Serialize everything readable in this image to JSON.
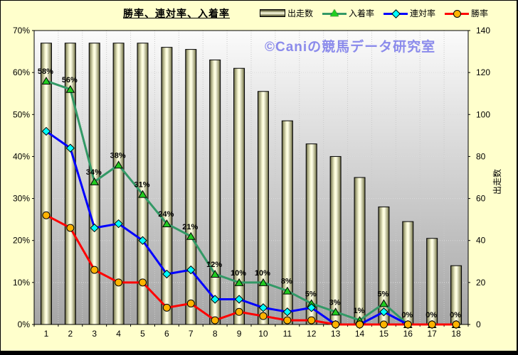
{
  "chart_data": {
    "type": "bar",
    "subtype": "bar-line-combo",
    "title": "勝率、連対率、入着率",
    "watermark": "©Caniの競馬データ研究室",
    "categories": [
      "1",
      "2",
      "3",
      "4",
      "5",
      "6",
      "7",
      "8",
      "9",
      "10",
      "11",
      "12",
      "13",
      "14",
      "15",
      "16",
      "17",
      "18"
    ],
    "left_axis": {
      "unit": "%",
      "min": 0,
      "max": 70,
      "step": 10,
      "labels": [
        "0%",
        "10%",
        "20%",
        "30%",
        "40%",
        "50%",
        "60%",
        "70%"
      ]
    },
    "right_axis": {
      "label": "出走数",
      "min": 0,
      "max": 140,
      "step": 20,
      "labels": [
        "0",
        "20",
        "40",
        "60",
        "80",
        "100",
        "120",
        "140"
      ]
    },
    "grid": "horizontal-and-vertical-dotted",
    "legend_position": "top-right",
    "series": [
      {
        "name": "出走数",
        "type": "bar",
        "axis": "right",
        "fill": "cream-cylinder",
        "values": [
          134,
          134,
          134,
          134,
          134,
          132,
          131,
          126,
          122,
          111,
          97,
          86,
          80,
          70,
          56,
          49,
          41,
          28
        ]
      },
      {
        "name": "入着率",
        "type": "line",
        "axis": "left",
        "color": "#339966",
        "marker": "triangle",
        "marker_color": "#21CC21",
        "values": [
          58,
          56,
          34,
          38,
          31,
          24,
          21,
          12,
          10,
          10,
          8,
          5,
          3,
          1,
          5,
          0,
          0,
          0
        ],
        "data_labels": [
          "58%",
          "56%",
          "34%",
          "38%",
          "31%",
          "24%",
          "21%",
          "12%",
          "10%",
          "10%",
          "8%",
          "5%",
          "3%",
          "1%",
          "5%",
          "0%",
          "0%",
          "0%"
        ]
      },
      {
        "name": "連対率",
        "type": "line",
        "axis": "left",
        "color": "#0000FF",
        "marker": "diamond",
        "marker_color": "#00FFFF",
        "values": [
          46,
          42,
          23,
          24,
          20,
          12,
          13,
          6,
          6,
          4,
          3,
          4,
          0,
          0,
          3,
          0,
          0,
          0
        ]
      },
      {
        "name": "勝率",
        "type": "line",
        "axis": "left",
        "color": "#FF0000",
        "marker": "circle",
        "marker_color": "#FFB300",
        "values": [
          26,
          23,
          13,
          10,
          10,
          4,
          5,
          1,
          3,
          2,
          1,
          1,
          0,
          0,
          0,
          0,
          0,
          0
        ]
      }
    ],
    "colors": {
      "background": "#FFFFCC",
      "plot_gradient_top": "#FBFBFB",
      "plot_gradient_bottom": "#A6A6A6",
      "watermark": "#8B8BEB"
    }
  }
}
